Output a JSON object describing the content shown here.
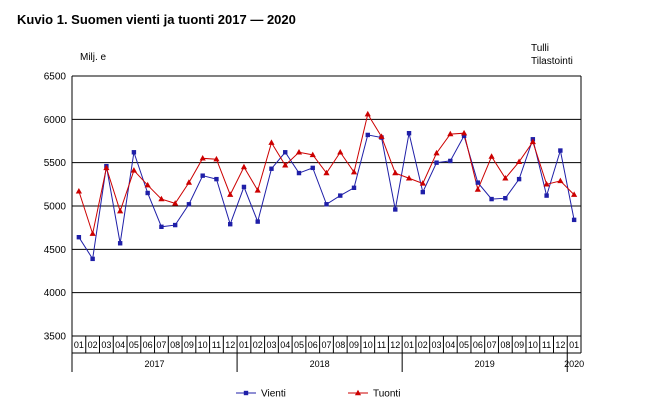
{
  "chart_data": {
    "type": "line",
    "title": "Kuvio 1. Suomen vienti ja tuonti 2017 — 2020",
    "unit": "Milj. e",
    "source": [
      "Tulli",
      "Tilastointi"
    ],
    "ylim": [
      3500,
      6500
    ],
    "yticks": [
      3500,
      4000,
      4500,
      5000,
      5500,
      6000,
      6500
    ],
    "grid": true,
    "legend_position": "bottom",
    "x": [
      "01",
      "02",
      "03",
      "04",
      "05",
      "06",
      "07",
      "08",
      "09",
      "10",
      "11",
      "12",
      "01",
      "02",
      "03",
      "04",
      "05",
      "06",
      "07",
      "08",
      "09",
      "10",
      "11",
      "12",
      "01",
      "02",
      "03",
      "04",
      "05",
      "06",
      "07",
      "08",
      "09",
      "10",
      "11",
      "12",
      "01"
    ],
    "year_labels": [
      {
        "label": "2017",
        "start": 0,
        "end": 11
      },
      {
        "label": "2018",
        "start": 12,
        "end": 23
      },
      {
        "label": "2019",
        "start": 24,
        "end": 35
      },
      {
        "label": "2020",
        "start": 36,
        "end": 36
      }
    ],
    "series": [
      {
        "name": "Vienti",
        "color": "#1f1fa8",
        "marker": "square",
        "values": [
          4640,
          4390,
          5460,
          4570,
          5620,
          5150,
          4760,
          4780,
          5020,
          5350,
          5310,
          4790,
          5220,
          4820,
          5430,
          5620,
          5380,
          5440,
          5020,
          5120,
          5210,
          5820,
          5790,
          4960,
          5840,
          5160,
          5500,
          5520,
          5810,
          5270,
          5080,
          5090,
          5310,
          5770,
          5120,
          5640,
          4840
        ]
      },
      {
        "name": "Tuonti",
        "color": "#cc0000",
        "marker": "triangle",
        "values": [
          5170,
          4680,
          5440,
          4940,
          5410,
          5240,
          5080,
          5030,
          5270,
          5550,
          5540,
          5130,
          5450,
          5180,
          5730,
          5470,
          5620,
          5590,
          5380,
          5620,
          5390,
          6060,
          5800,
          5380,
          5320,
          5260,
          5610,
          5830,
          5840,
          5190,
          5570,
          5320,
          5510,
          5740,
          5250,
          5290,
          5130
        ]
      }
    ]
  }
}
